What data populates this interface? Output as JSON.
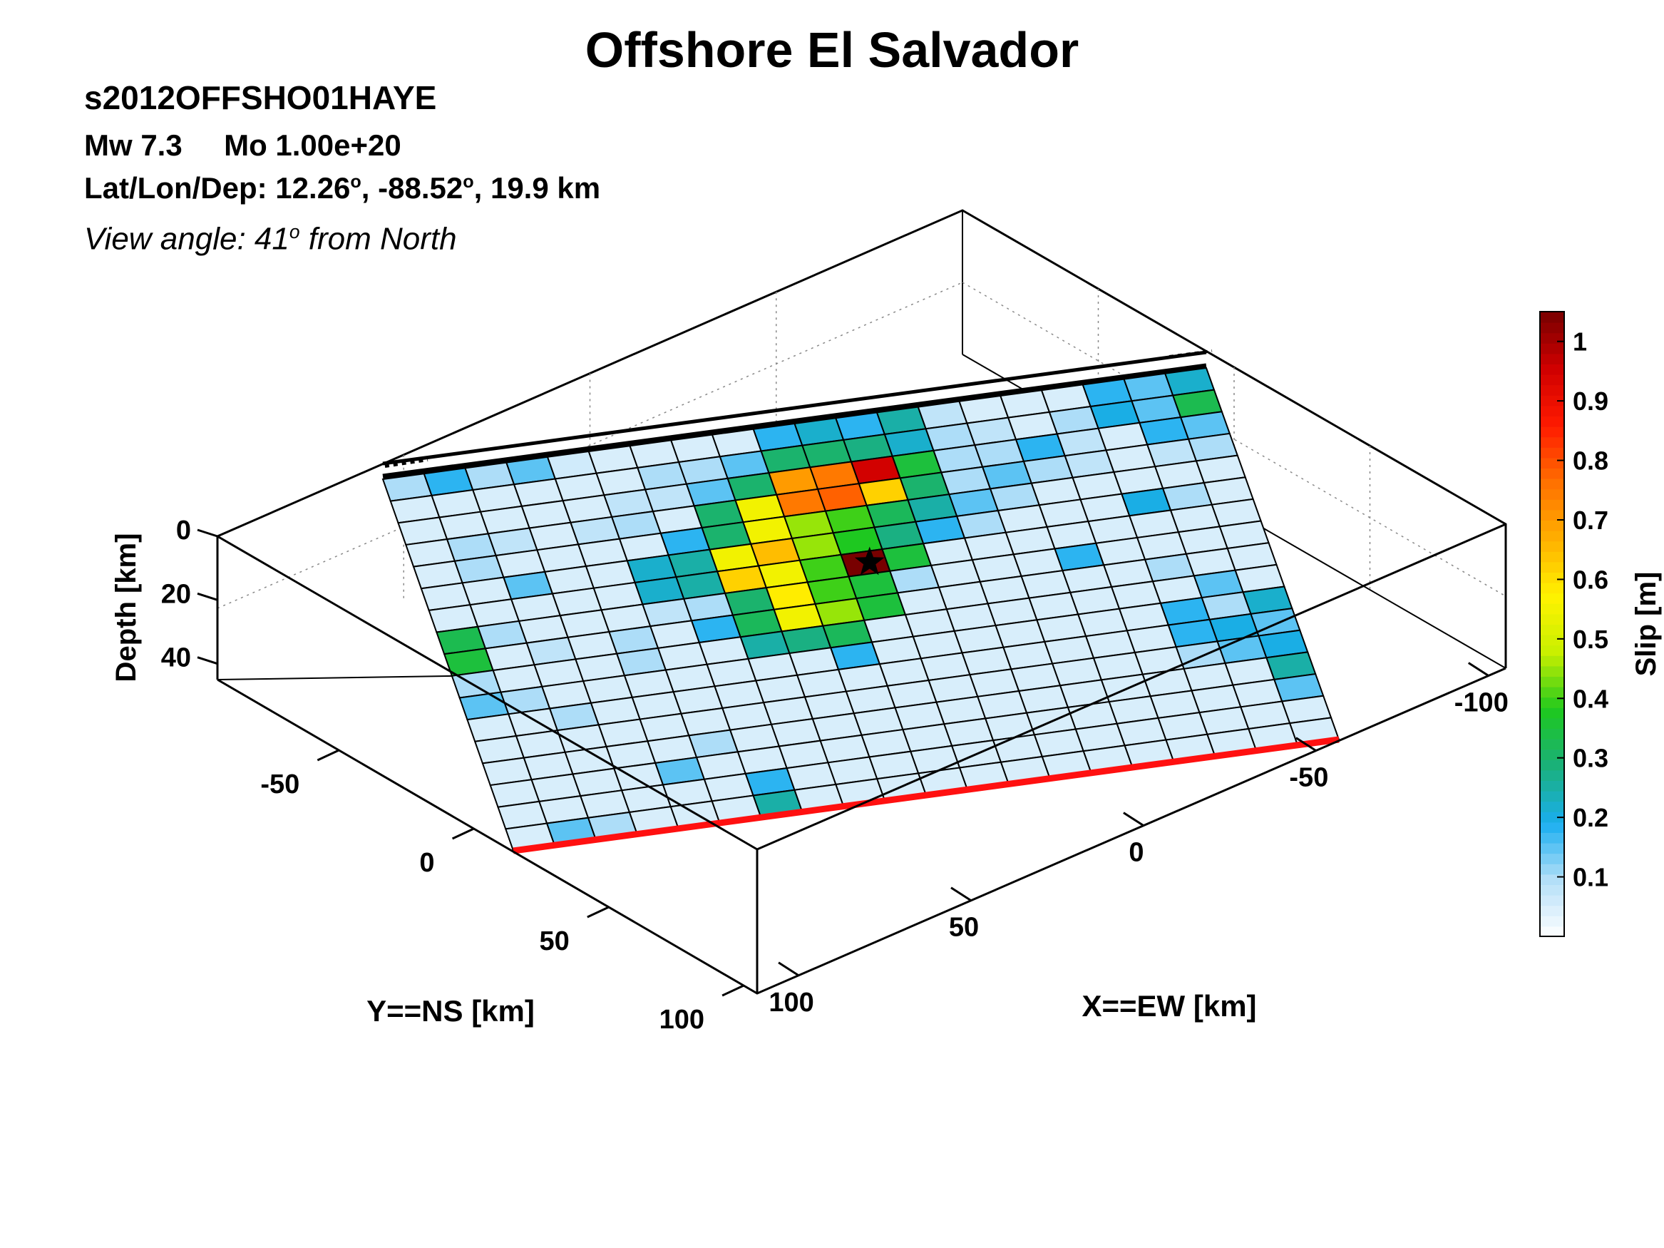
{
  "header": {
    "title": "Offshore El Salvador",
    "event_id": "s2012OFFSHO01HAYE",
    "mw_label": "Mw 7.3",
    "mo_label": "Mo 1.00e+20",
    "loc_prefix": "Lat/Lon/Dep: 12.26",
    "loc_deg": "o",
    "loc_mid": ", -88.52",
    "loc_end": ", 19.9 km",
    "view_prefix": "View angle:  41",
    "view_deg": "o",
    "view_suffix": " from North"
  },
  "chart_data": {
    "type": "heatmap",
    "title": "Offshore El Salvador",
    "axes": {
      "z_label": "Depth [km]",
      "y_label": "Y==NS [km]",
      "x_label": "X==EW [km]",
      "depth_ticks": [
        "0",
        "20",
        "40"
      ],
      "ns_ticks": [
        "-50",
        "0",
        "50",
        "100"
      ],
      "ew_ticks": [
        "-100",
        "-50",
        "0",
        "50",
        "100"
      ],
      "depth_range": [
        0,
        45
      ],
      "grid": true
    },
    "colorbar": {
      "label": "Slip [m]",
      "range": [
        0,
        1.05
      ],
      "ticks": [
        "0.1",
        "0.2",
        "0.3",
        "0.4",
        "0.5",
        "0.6",
        "0.7",
        "0.8",
        "0.9",
        "1"
      ],
      "colormap": [
        "#ffffff",
        "#b4dff8",
        "#1aaef0",
        "#1ab07a",
        "#1ec81e",
        "#c8f000",
        "#fff200",
        "#ffb000",
        "#ff7000",
        "#ff1a00",
        "#d00000",
        "#780000"
      ]
    },
    "fault_plane": {
      "cols": 20,
      "rows": 17,
      "slip_m": [
        [
          0.1,
          0.18,
          0.1,
          0.15,
          0.06,
          0.05,
          0.05,
          0.05,
          0.05,
          0.18,
          0.22,
          0.18,
          0.25,
          0.08,
          0.05,
          0.05,
          0.05,
          0.18,
          0.15,
          0.22
        ],
        [
          0.05,
          0.05,
          0.05,
          0.05,
          0.05,
          0.05,
          0.1,
          0.1,
          0.15,
          0.3,
          0.3,
          0.28,
          0.22,
          0.1,
          0.08,
          0.05,
          0.1,
          0.2,
          0.15,
          0.33
        ],
        [
          0.05,
          0.05,
          0.05,
          0.05,
          0.05,
          0.08,
          0.08,
          0.15,
          0.3,
          0.7,
          0.75,
          0.95,
          0.35,
          0.1,
          0.1,
          0.18,
          0.08,
          0.05,
          0.18,
          0.15
        ],
        [
          0.05,
          0.1,
          0.08,
          0.05,
          0.08,
          0.1,
          0.05,
          0.3,
          0.55,
          0.75,
          0.78,
          0.62,
          0.3,
          0.1,
          0.15,
          0.1,
          0.08,
          0.05,
          0.08,
          0.1
        ],
        [
          0.05,
          0.1,
          0.05,
          0.05,
          0.05,
          0.05,
          0.18,
          0.3,
          0.55,
          0.45,
          0.4,
          0.32,
          0.25,
          0.15,
          0.1,
          0.05,
          0.05,
          0.05,
          0.05,
          0.05
        ],
        [
          0.05,
          0.05,
          0.15,
          0.05,
          0.05,
          0.22,
          0.25,
          0.55,
          0.65,
          0.45,
          0.38,
          0.28,
          0.18,
          0.1,
          0.05,
          0.05,
          0.05,
          0.2,
          0.1,
          0.05
        ],
        [
          0.05,
          0.05,
          0.05,
          0.05,
          0.05,
          0.22,
          0.25,
          0.62,
          0.55,
          0.4,
          1.05,
          0.35,
          0.05,
          0.05,
          0.05,
          0.05,
          0.05,
          0.05,
          0.05,
          0.05
        ],
        [
          0.33,
          0.1,
          0.05,
          0.05,
          0.05,
          0.08,
          0.1,
          0.3,
          0.58,
          0.4,
          0.35,
          0.1,
          0.05,
          0.05,
          0.05,
          0.18,
          0.05,
          0.05,
          0.05,
          0.05
        ],
        [
          0.35,
          0.05,
          0.08,
          0.05,
          0.1,
          0.05,
          0.18,
          0.32,
          0.55,
          0.45,
          0.35,
          0.05,
          0.05,
          0.05,
          0.05,
          0.05,
          0.05,
          0.1,
          0.05,
          0.05
        ],
        [
          0.1,
          0.05,
          0.05,
          0.05,
          0.1,
          0.05,
          0.05,
          0.25,
          0.28,
          0.32,
          0.05,
          0.05,
          0.05,
          0.05,
          0.05,
          0.05,
          0.05,
          0.05,
          0.15,
          0.05
        ],
        [
          0.15,
          0.1,
          0.05,
          0.05,
          0.05,
          0.05,
          0.05,
          0.05,
          0.05,
          0.18,
          0.05,
          0.05,
          0.05,
          0.05,
          0.05,
          0.05,
          0.05,
          0.18,
          0.1,
          0.22
        ],
        [
          0.05,
          0.05,
          0.1,
          0.05,
          0.05,
          0.05,
          0.05,
          0.05,
          0.05,
          0.05,
          0.05,
          0.05,
          0.05,
          0.05,
          0.05,
          0.05,
          0.05,
          0.18,
          0.2,
          0.15
        ],
        [
          0.05,
          0.05,
          0.05,
          0.05,
          0.05,
          0.05,
          0.05,
          0.05,
          0.05,
          0.05,
          0.05,
          0.05,
          0.05,
          0.05,
          0.05,
          0.05,
          0.05,
          0.1,
          0.15,
          0.2
        ],
        [
          0.05,
          0.05,
          0.05,
          0.05,
          0.05,
          0.1,
          0.05,
          0.05,
          0.05,
          0.05,
          0.05,
          0.05,
          0.05,
          0.05,
          0.05,
          0.05,
          0.05,
          0.05,
          0.05,
          0.25
        ],
        [
          0.05,
          0.05,
          0.05,
          0.05,
          0.15,
          0.05,
          0.05,
          0.05,
          0.05,
          0.05,
          0.05,
          0.05,
          0.05,
          0.05,
          0.05,
          0.05,
          0.05,
          0.05,
          0.05,
          0.15
        ],
        [
          0.05,
          0.05,
          0.05,
          0.05,
          0.05,
          0.05,
          0.18,
          0.05,
          0.05,
          0.05,
          0.05,
          0.05,
          0.05,
          0.05,
          0.05,
          0.05,
          0.05,
          0.05,
          0.05,
          0.05
        ],
        [
          0.05,
          0.15,
          0.1,
          0.05,
          0.05,
          0.05,
          0.25,
          0.05,
          0.05,
          0.05,
          0.05,
          0.05,
          0.05,
          0.05,
          0.05,
          0.05,
          0.05,
          0.05,
          0.05,
          0.05
        ]
      ],
      "hypocenter_marker": "star"
    }
  }
}
